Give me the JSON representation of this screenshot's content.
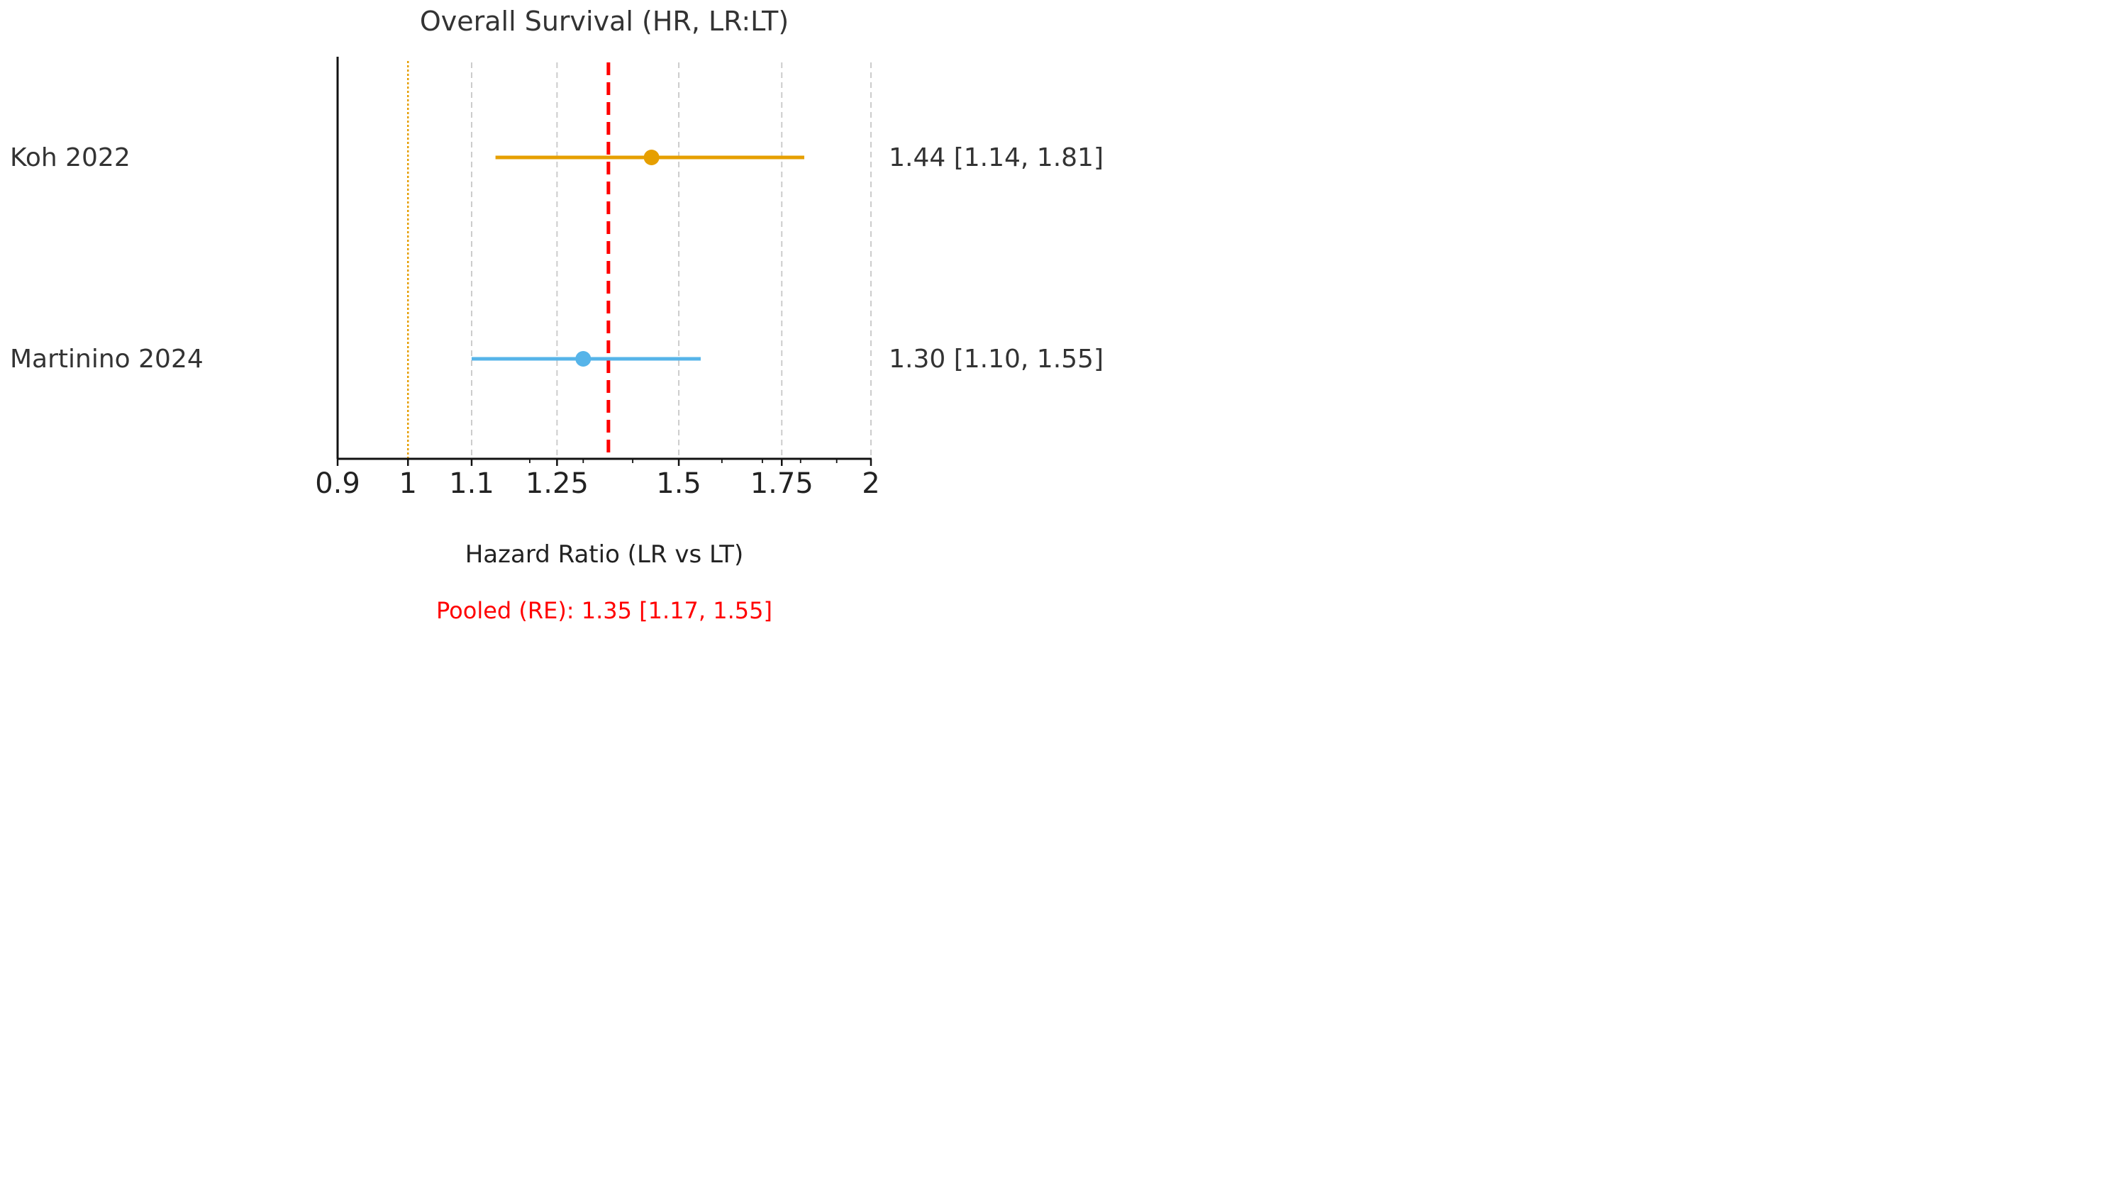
{
  "chart_data": {
    "type": "forest",
    "title": "Overall Survival (HR, LR:LT)",
    "xlabel": "Hazard Ratio (LR vs LT)",
    "xscale": "log",
    "xlim": [
      0.9,
      2
    ],
    "xticks": [
      0.9,
      1,
      1.1,
      1.25,
      1.5,
      1.75,
      2
    ],
    "xtick_labels": [
      "0.9",
      "1",
      "1.1",
      "1.25",
      "1.5",
      "1.75",
      "2"
    ],
    "reference_line": 1,
    "grid": "vertical dashed",
    "studies": [
      {
        "name": "Koh 2022",
        "hr": 1.44,
        "ci": [
          1.14,
          1.81
        ],
        "label": "1.44 [1.14, 1.81]",
        "color": "#E69F00"
      },
      {
        "name": "Martinino 2024",
        "hr": 1.3,
        "ci": [
          1.1,
          1.55
        ],
        "label": "1.30 [1.10, 1.55]",
        "color": "#56B4E9"
      }
    ],
    "pooled": {
      "hr": 1.35,
      "ci": [
        1.17,
        1.55
      ],
      "label": "Pooled (RE): 1.35 [1.17, 1.55]",
      "color": "#FF0000"
    }
  }
}
